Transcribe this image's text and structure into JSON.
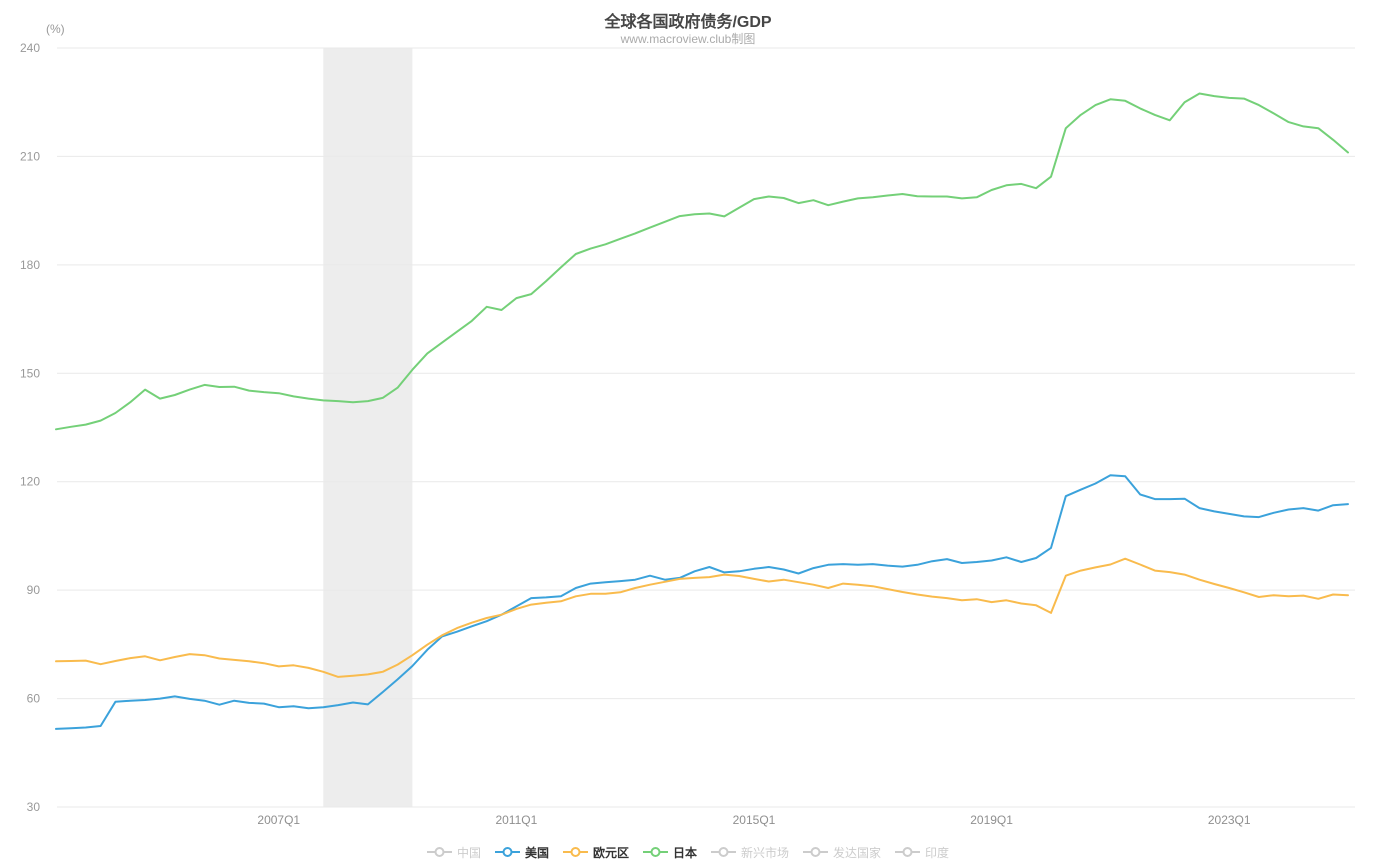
{
  "header": {
    "title": "全球各国政府债务/GDP",
    "subtitle": "www.macroview.club制图"
  },
  "axis": {
    "unit_label": "(%)",
    "y_ticks": [
      30,
      60,
      90,
      120,
      150,
      180,
      210,
      240
    ],
    "x_tick_labels": [
      "2007Q1",
      "2011Q1",
      "2015Q1",
      "2019Q1",
      "2023Q1"
    ]
  },
  "legend": {
    "items": [
      {
        "label": "中国",
        "active": false
      },
      {
        "label": "美国",
        "active": true
      },
      {
        "label": "欧元区",
        "active": true
      },
      {
        "label": "日本",
        "active": true
      },
      {
        "label": "新兴市场",
        "active": false
      },
      {
        "label": "发达国家",
        "active": false
      },
      {
        "label": "印度",
        "active": false
      }
    ],
    "inactive_color": "#ccc"
  },
  "colors": {
    "grid_line": "#e9e9e9",
    "tick_text": "#999999",
    "recession_band": "rgba(190,190,190,0.28)"
  },
  "chart_data": {
    "type": "line",
    "title": "全球各国政府债务/GDP",
    "subtitle": "www.macroview.club制图",
    "ylabel": "(%)",
    "ylim": [
      30,
      240
    ],
    "grid": true,
    "legend_position": "bottom",
    "recession_band": {
      "from": "2007Q4",
      "to": "2009Q2"
    },
    "inactive_series": [
      "中国",
      "新兴市场",
      "发达国家",
      "印度"
    ],
    "x": [
      "2003Q2",
      "2003Q3",
      "2003Q4",
      "2004Q1",
      "2004Q2",
      "2004Q3",
      "2004Q4",
      "2005Q1",
      "2005Q2",
      "2005Q3",
      "2005Q4",
      "2006Q1",
      "2006Q2",
      "2006Q3",
      "2006Q4",
      "2007Q1",
      "2007Q2",
      "2007Q3",
      "2007Q4",
      "2008Q1",
      "2008Q2",
      "2008Q3",
      "2008Q4",
      "2009Q1",
      "2009Q2",
      "2009Q3",
      "2009Q4",
      "2010Q1",
      "2010Q2",
      "2010Q3",
      "2010Q4",
      "2011Q1",
      "2011Q2",
      "2011Q3",
      "2011Q4",
      "2012Q1",
      "2012Q2",
      "2012Q3",
      "2012Q4",
      "2013Q1",
      "2013Q2",
      "2013Q3",
      "2013Q4",
      "2014Q1",
      "2014Q2",
      "2014Q3",
      "2014Q4",
      "2015Q1",
      "2015Q2",
      "2015Q3",
      "2015Q4",
      "2016Q1",
      "2016Q2",
      "2016Q3",
      "2016Q4",
      "2017Q1",
      "2017Q2",
      "2017Q3",
      "2017Q4",
      "2018Q1",
      "2018Q2",
      "2018Q3",
      "2018Q4",
      "2019Q1",
      "2019Q2",
      "2019Q3",
      "2019Q4",
      "2020Q1",
      "2020Q2",
      "2020Q3",
      "2020Q4",
      "2021Q1",
      "2021Q2",
      "2021Q3",
      "2021Q4",
      "2022Q1",
      "2022Q2",
      "2022Q3",
      "2022Q4",
      "2023Q1",
      "2023Q2",
      "2023Q3",
      "2023Q4",
      "2024Q1",
      "2024Q2",
      "2024Q3",
      "2024Q4",
      "2025Q1"
    ],
    "series": [
      {
        "name": "美国",
        "color": "#3ba2db",
        "values": [
          51.6,
          51.8,
          52.0,
          52.4,
          59.1,
          59.4,
          59.6,
          60.0,
          60.6,
          59.9,
          59.4,
          58.3,
          59.4,
          58.8,
          58.6,
          57.6,
          57.9,
          57.3,
          57.6,
          58.2,
          58.9,
          58.4,
          61.8,
          65.3,
          69.0,
          73.5,
          77.2,
          78.5,
          80.0,
          81.4,
          83.2,
          85.5,
          87.8,
          88.0,
          88.3,
          90.6,
          91.8,
          92.2,
          92.5,
          92.9,
          94.0,
          92.9,
          93.4,
          95.2,
          96.4,
          94.9,
          95.2,
          95.9,
          96.4,
          95.7,
          94.6,
          96.1,
          97.0,
          97.2,
          97.0,
          97.2,
          96.8,
          96.5,
          97.0,
          98.0,
          98.6,
          97.5,
          97.8,
          98.2,
          99.1,
          97.8,
          98.9,
          101.7,
          116.0,
          117.8,
          119.5,
          121.8,
          121.5,
          116.5,
          115.2,
          115.2,
          115.3,
          112.7,
          111.8,
          111.1,
          110.4,
          110.2,
          111.4,
          112.3,
          112.7,
          112.0,
          113.5,
          113.8
        ]
      },
      {
        "name": "欧元区",
        "color": "#f9bb4d",
        "values": [
          70.3,
          70.4,
          70.5,
          69.5,
          70.4,
          71.2,
          71.7,
          70.6,
          71.5,
          72.3,
          72.0,
          71.1,
          70.7,
          70.3,
          69.8,
          68.9,
          69.2,
          68.5,
          67.4,
          66.0,
          66.3,
          66.7,
          67.4,
          69.4,
          72.0,
          74.9,
          77.5,
          79.5,
          81.0,
          82.3,
          83.2,
          84.8,
          86.0,
          86.5,
          86.9,
          88.3,
          89.0,
          89.0,
          89.4,
          90.6,
          91.5,
          92.3,
          93.1,
          93.4,
          93.6,
          94.3,
          93.9,
          93.1,
          92.4,
          92.9,
          92.2,
          91.5,
          90.6,
          91.8,
          91.5,
          91.1,
          90.3,
          89.5,
          88.8,
          88.2,
          87.8,
          87.2,
          87.5,
          86.7,
          87.2,
          86.3,
          85.8,
          83.7,
          94.0,
          95.4,
          96.3,
          97.1,
          98.7,
          97.1,
          95.4,
          95.0,
          94.3,
          92.9,
          91.7,
          90.6,
          89.4,
          88.1,
          88.6,
          88.3,
          88.5,
          87.6,
          88.8,
          88.6
        ]
      },
      {
        "name": "日本",
        "color": "#74d078",
        "values": [
          134.5,
          135.2,
          135.8,
          136.9,
          139.0,
          142.0,
          145.5,
          143.0,
          144.0,
          145.5,
          146.8,
          146.2,
          146.3,
          145.2,
          144.8,
          144.5,
          143.6,
          143.0,
          142.5,
          142.3,
          142.0,
          142.3,
          143.2,
          146.0,
          151.0,
          155.5,
          158.5,
          161.5,
          164.5,
          168.4,
          167.5,
          170.8,
          171.9,
          175.5,
          179.3,
          183.0,
          184.5,
          185.7,
          187.2,
          188.7,
          190.3,
          191.9,
          193.5,
          194.0,
          194.2,
          193.4,
          195.8,
          198.2,
          198.9,
          198.5,
          197.1,
          197.9,
          196.5,
          197.5,
          198.4,
          198.7,
          199.2,
          199.6,
          199.0,
          198.9,
          198.9,
          198.4,
          198.7,
          200.7,
          202.0,
          202.4,
          201.2,
          204.4,
          217.8,
          221.5,
          224.2,
          225.8,
          225.4,
          223.3,
          221.5,
          220.0,
          225.0,
          227.4,
          226.7,
          226.2,
          226.0,
          224.2,
          221.9,
          219.5,
          218.3,
          217.8,
          214.6,
          211.1
        ]
      }
    ]
  }
}
